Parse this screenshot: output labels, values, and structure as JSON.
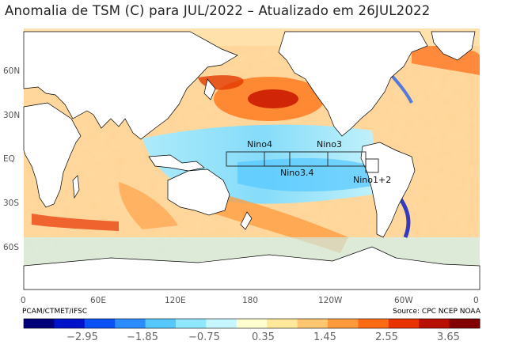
{
  "title": "Anomalia de TSM (C) para JUL/2022 – Atualizado em 26JUL2022",
  "map": {
    "lat_labels": [
      "60N",
      "30N",
      "EQ",
      "30S",
      "60S"
    ],
    "lon_labels": [
      "0",
      "60E",
      "120E",
      "180",
      "120W",
      "60W",
      "0"
    ],
    "nino_regions": [
      {
        "name": "Nino4",
        "lon": [
          160,
          210
        ],
        "lat": [
          -5,
          5
        ]
      },
      {
        "name": "Nino3.4",
        "lon": [
          190,
          240
        ],
        "lat": [
          -5,
          5
        ]
      },
      {
        "name": "Nino3",
        "lon": [
          210,
          270
        ],
        "lat": [
          -5,
          5
        ]
      },
      {
        "name": "Nino1+2",
        "lon": [
          270,
          280
        ],
        "lat": [
          -10,
          0
        ]
      }
    ]
  },
  "credits": {
    "left": "PCAM/CTMET/IFSC",
    "right": "Source: CPC NCEP NOAA"
  },
  "colorbar": {
    "tick_labels": [
      "−2.95",
      "−1.85",
      "−0.75",
      "0.35",
      "1.45",
      "2.55",
      "3.65"
    ],
    "colors": [
      "#00007a",
      "#0013c8",
      "#0a52f5",
      "#2a8cff",
      "#55c8ff",
      "#8fe8ff",
      "#c6f6ff",
      "#ffffd0",
      "#ffe89a",
      "#ffc670",
      "#ff9a3c",
      "#ff6a14",
      "#e83200",
      "#b81000",
      "#820000"
    ]
  }
}
